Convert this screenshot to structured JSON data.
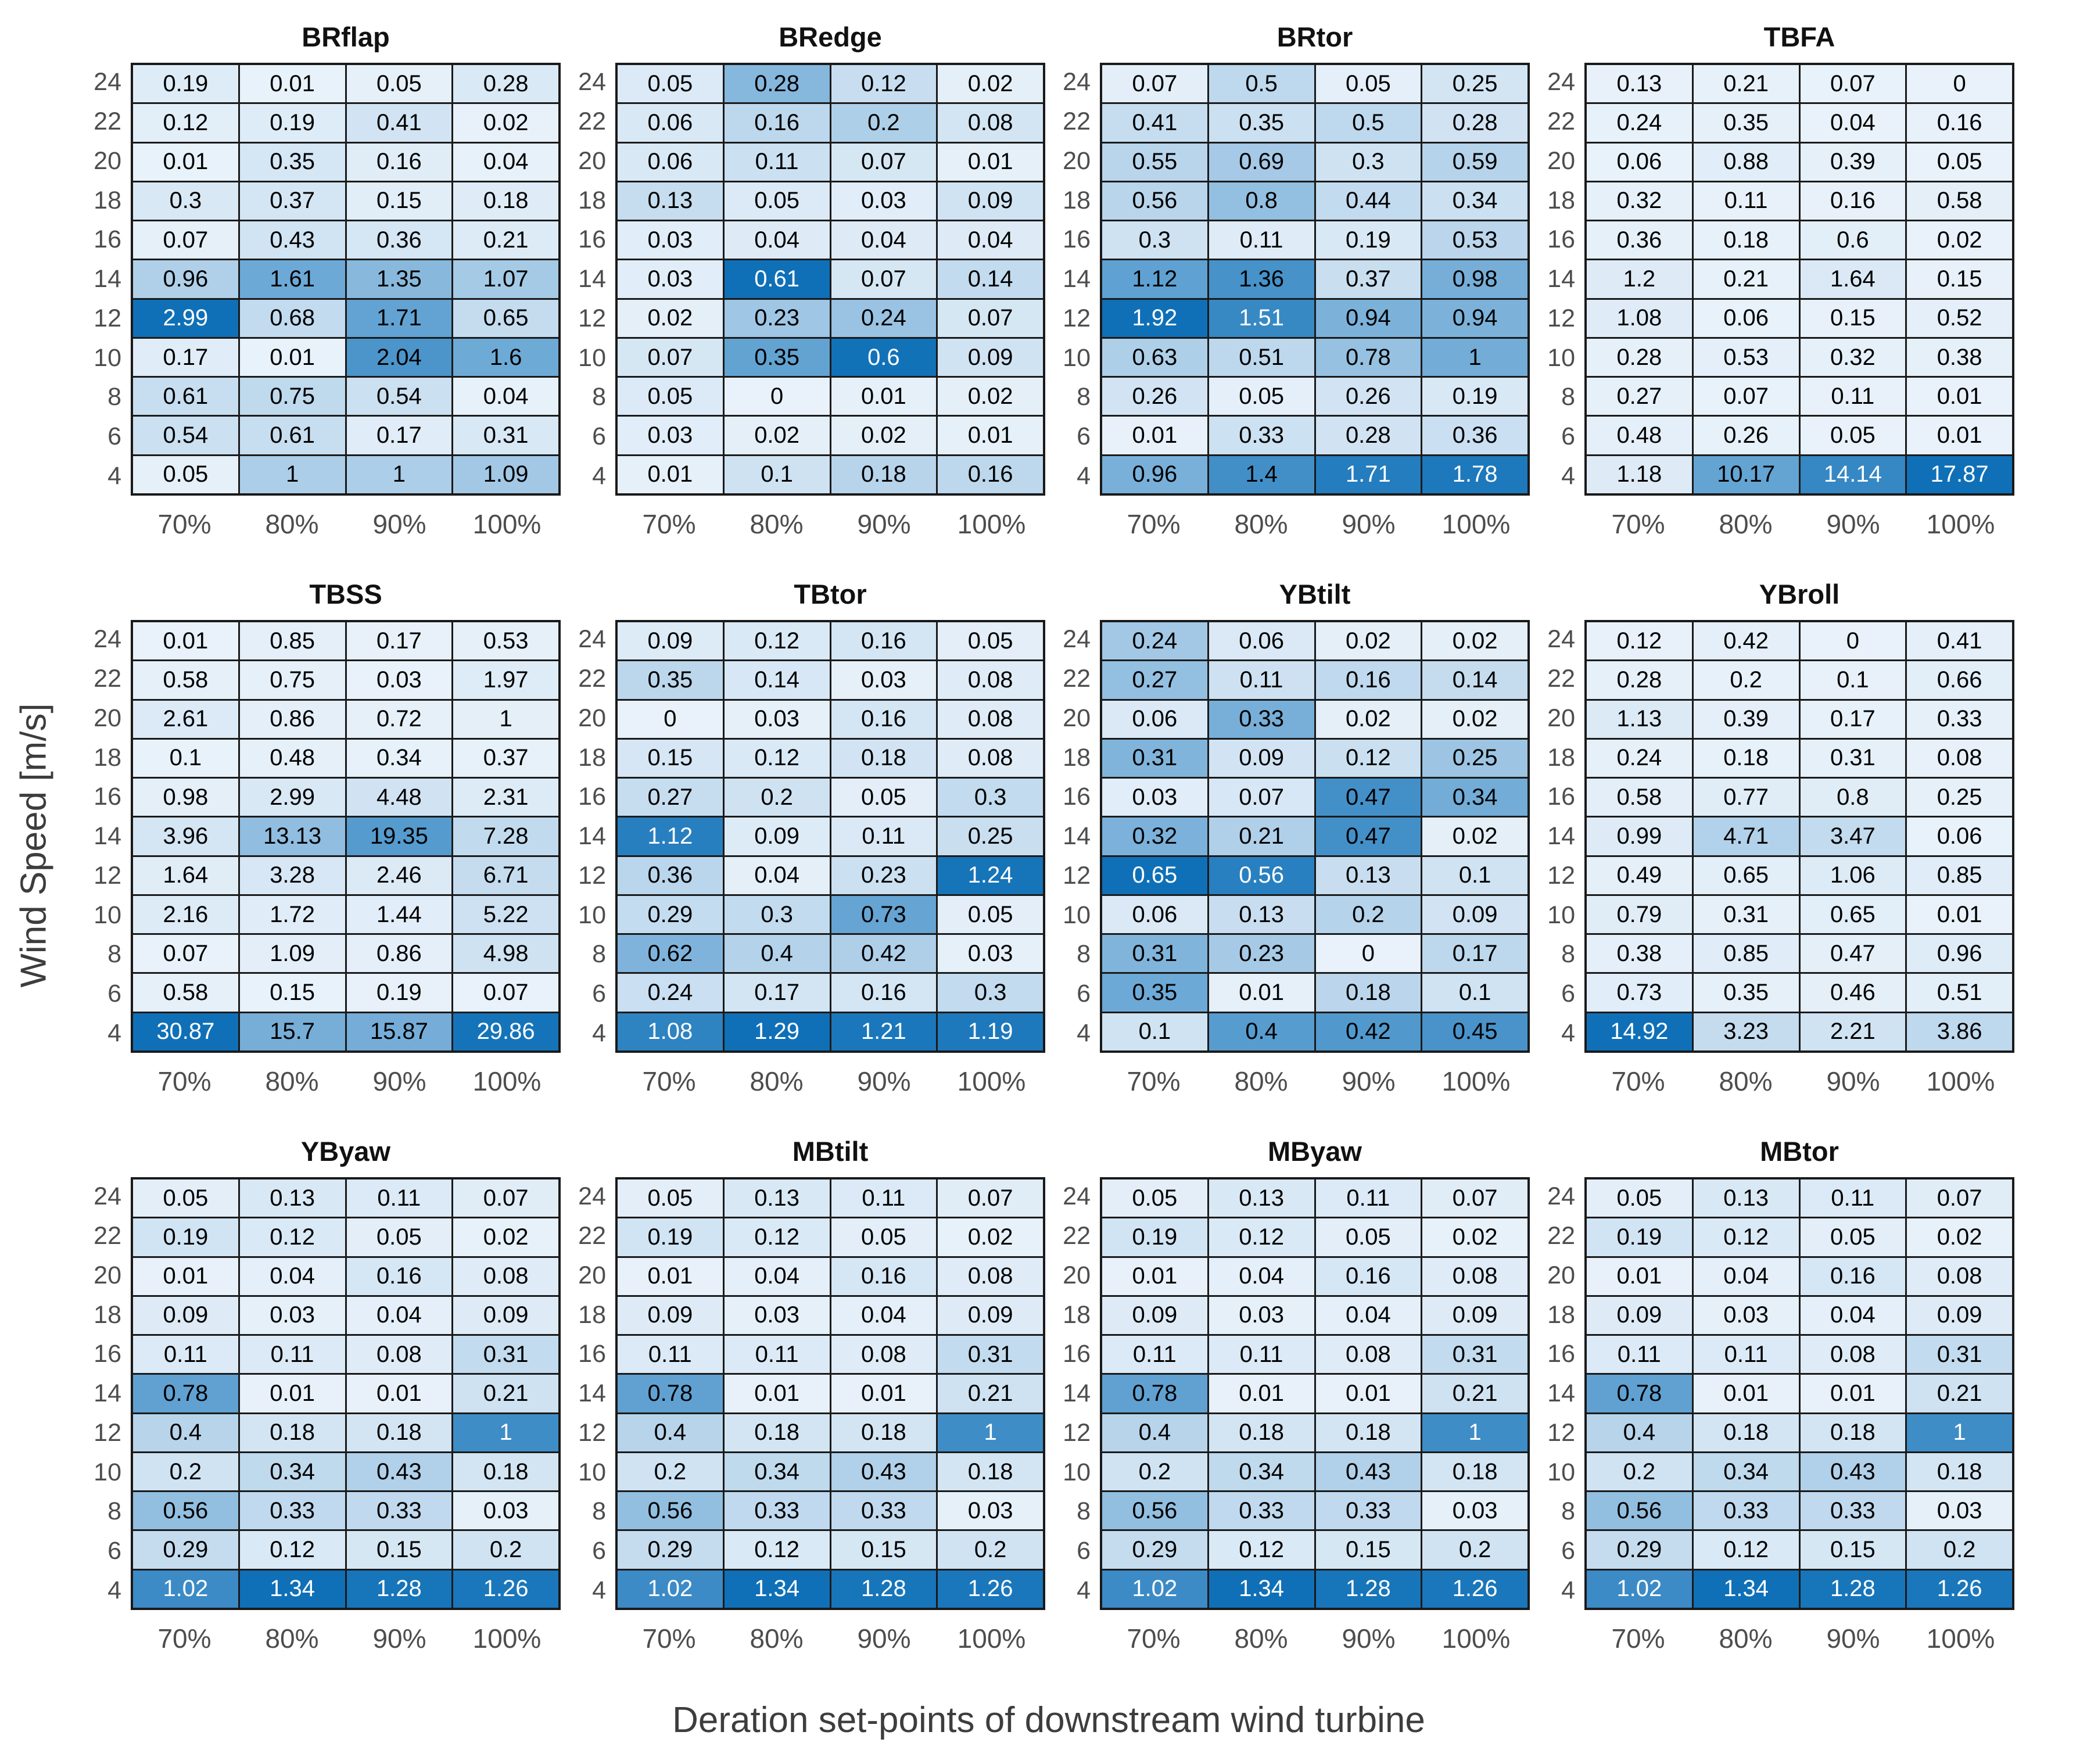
{
  "chart_data": {
    "type": "heatmap",
    "layout": {
      "rows": 3,
      "cols": 4
    },
    "xlabel": "Deration set-points of downstream wind turbine",
    "ylabel": "Wind Speed [m/s]",
    "x_tick_labels": [
      "70%",
      "80%",
      "90%",
      "100%"
    ],
    "y_tick_labels": [
      "24",
      "22",
      "20",
      "18",
      "16",
      "14",
      "12",
      "10",
      "8",
      "6",
      "4"
    ],
    "color_scale": {
      "normalization": "per_panel_max",
      "stops": [
        {
          "t": 0.0,
          "color": "#e9f2fa"
        },
        {
          "t": 0.3,
          "color": "#b7d4eb"
        },
        {
          "t": 0.6,
          "color": "#5a9ed0"
        },
        {
          "t": 1.0,
          "color": "#0f70b7"
        }
      ],
      "white_text_threshold": 0.74
    },
    "colors": {
      "background": "#ffffff",
      "grid_line": "#1a1a1a",
      "cell_text_dark": "#000000",
      "cell_text_light": "#ffffff",
      "tick_text": "#4d4d4d",
      "title_text": "#111111",
      "axis_label_text": "#3d3d3d"
    },
    "panels": [
      {
        "title": "BRflap",
        "values": [
          [
            0.19,
            0.01,
            0.05,
            0.28
          ],
          [
            0.12,
            0.19,
            0.41,
            0.02
          ],
          [
            0.01,
            0.35,
            0.16,
            0.04
          ],
          [
            0.3,
            0.37,
            0.15,
            0.18
          ],
          [
            0.07,
            0.43,
            0.36,
            0.21
          ],
          [
            0.96,
            1.61,
            1.35,
            1.07
          ],
          [
            2.99,
            0.68,
            1.71,
            0.65
          ],
          [
            0.17,
            0.01,
            2.04,
            1.6
          ],
          [
            0.61,
            0.75,
            0.54,
            0.04
          ],
          [
            0.54,
            0.61,
            0.17,
            0.31
          ],
          [
            0.05,
            1,
            1,
            1.09
          ]
        ]
      },
      {
        "title": "BRedge",
        "values": [
          [
            0.05,
            0.28,
            0.12,
            0.02
          ],
          [
            0.06,
            0.16,
            0.2,
            0.08
          ],
          [
            0.06,
            0.11,
            0.07,
            0.01
          ],
          [
            0.13,
            0.05,
            0.03,
            0.09
          ],
          [
            0.03,
            0.04,
            0.04,
            0.04
          ],
          [
            0.03,
            0.61,
            0.07,
            0.14
          ],
          [
            0.02,
            0.23,
            0.24,
            0.07
          ],
          [
            0.07,
            0.35,
            0.6,
            0.09
          ],
          [
            0.05,
            0,
            0.01,
            0.02
          ],
          [
            0.03,
            0.02,
            0.02,
            0.01
          ],
          [
            0.01,
            0.1,
            0.18,
            0.16
          ]
        ]
      },
      {
        "title": "BRtor",
        "values": [
          [
            0.07,
            0.5,
            0.05,
            0.25
          ],
          [
            0.41,
            0.35,
            0.5,
            0.28
          ],
          [
            0.55,
            0.69,
            0.3,
            0.59
          ],
          [
            0.56,
            0.8,
            0.44,
            0.34
          ],
          [
            0.3,
            0.11,
            0.19,
            0.53
          ],
          [
            1.12,
            1.36,
            0.37,
            0.98
          ],
          [
            1.92,
            1.51,
            0.94,
            0.94
          ],
          [
            0.63,
            0.51,
            0.78,
            1
          ],
          [
            0.26,
            0.05,
            0.26,
            0.19
          ],
          [
            0.01,
            0.33,
            0.28,
            0.36
          ],
          [
            0.96,
            1.4,
            1.71,
            1.78
          ]
        ]
      },
      {
        "title": "TBFA",
        "values": [
          [
            0.13,
            0.21,
            0.07,
            0
          ],
          [
            0.24,
            0.35,
            0.04,
            0.16
          ],
          [
            0.06,
            0.88,
            0.39,
            0.05
          ],
          [
            0.32,
            0.11,
            0.16,
            0.58
          ],
          [
            0.36,
            0.18,
            0.6,
            0.02
          ],
          [
            1.2,
            0.21,
            1.64,
            0.15
          ],
          [
            1.08,
            0.06,
            0.15,
            0.52
          ],
          [
            0.28,
            0.53,
            0.32,
            0.38
          ],
          [
            0.27,
            0.07,
            0.11,
            0.01
          ],
          [
            0.48,
            0.26,
            0.05,
            0.01
          ],
          [
            1.18,
            10.17,
            14.14,
            17.87
          ]
        ]
      },
      {
        "title": "TBSS",
        "values": [
          [
            0.01,
            0.85,
            0.17,
            0.53
          ],
          [
            0.58,
            0.75,
            0.03,
            1.97
          ],
          [
            2.61,
            0.86,
            0.72,
            1
          ],
          [
            0.1,
            0.48,
            0.34,
            0.37
          ],
          [
            0.98,
            2.99,
            4.48,
            2.31
          ],
          [
            3.96,
            13.13,
            19.35,
            7.28
          ],
          [
            1.64,
            3.28,
            2.46,
            6.71
          ],
          [
            2.16,
            1.72,
            1.44,
            5.22
          ],
          [
            0.07,
            1.09,
            0.86,
            4.98
          ],
          [
            0.58,
            0.15,
            0.19,
            0.07
          ],
          [
            30.87,
            15.7,
            15.87,
            29.86
          ]
        ]
      },
      {
        "title": "TBtor",
        "values": [
          [
            0.09,
            0.12,
            0.16,
            0.05
          ],
          [
            0.35,
            0.14,
            0.03,
            0.08
          ],
          [
            0,
            0.03,
            0.16,
            0.08
          ],
          [
            0.15,
            0.12,
            0.18,
            0.08
          ],
          [
            0.27,
            0.2,
            0.05,
            0.3
          ],
          [
            1.12,
            0.09,
            0.11,
            0.25
          ],
          [
            0.36,
            0.04,
            0.23,
            1.24
          ],
          [
            0.29,
            0.3,
            0.73,
            0.05
          ],
          [
            0.62,
            0.4,
            0.42,
            0.03
          ],
          [
            0.24,
            0.17,
            0.16,
            0.3
          ],
          [
            1.08,
            1.29,
            1.21,
            1.19
          ]
        ]
      },
      {
        "title": "YBtilt",
        "values": [
          [
            0.24,
            0.06,
            0.02,
            0.02
          ],
          [
            0.27,
            0.11,
            0.16,
            0.14
          ],
          [
            0.06,
            0.33,
            0.02,
            0.02
          ],
          [
            0.31,
            0.09,
            0.12,
            0.25
          ],
          [
            0.03,
            0.07,
            0.47,
            0.34
          ],
          [
            0.32,
            0.21,
            0.47,
            0.02
          ],
          [
            0.65,
            0.56,
            0.13,
            0.1
          ],
          [
            0.06,
            0.13,
            0.2,
            0.09
          ],
          [
            0.31,
            0.23,
            0,
            0.17
          ],
          [
            0.35,
            0.01,
            0.18,
            0.1
          ],
          [
            0.1,
            0.4,
            0.42,
            0.45
          ]
        ]
      },
      {
        "title": "YBroll",
        "values": [
          [
            0.12,
            0.42,
            0,
            0.41
          ],
          [
            0.28,
            0.2,
            0.1,
            0.66
          ],
          [
            1.13,
            0.39,
            0.17,
            0.33
          ],
          [
            0.24,
            0.18,
            0.31,
            0.08
          ],
          [
            0.58,
            0.77,
            0.8,
            0.25
          ],
          [
            0.99,
            4.71,
            3.47,
            0.06
          ],
          [
            0.49,
            0.65,
            1.06,
            0.85
          ],
          [
            0.79,
            0.31,
            0.65,
            0.01
          ],
          [
            0.38,
            0.85,
            0.47,
            0.96
          ],
          [
            0.73,
            0.35,
            0.46,
            0.51
          ],
          [
            14.92,
            3.23,
            2.21,
            3.86
          ]
        ]
      },
      {
        "title": "YByaw",
        "values": [
          [
            0.05,
            0.13,
            0.11,
            0.07
          ],
          [
            0.19,
            0.12,
            0.05,
            0.02
          ],
          [
            0.01,
            0.04,
            0.16,
            0.08
          ],
          [
            0.09,
            0.03,
            0.04,
            0.09
          ],
          [
            0.11,
            0.11,
            0.08,
            0.31
          ],
          [
            0.78,
            0.01,
            0.01,
            0.21
          ],
          [
            0.4,
            0.18,
            0.18,
            1
          ],
          [
            0.2,
            0.34,
            0.43,
            0.18
          ],
          [
            0.56,
            0.33,
            0.33,
            0.03
          ],
          [
            0.29,
            0.12,
            0.15,
            0.2
          ],
          [
            1.02,
            1.34,
            1.28,
            1.26
          ]
        ]
      },
      {
        "title": "MBtilt",
        "values": [
          [
            0.05,
            0.13,
            0.11,
            0.07
          ],
          [
            0.19,
            0.12,
            0.05,
            0.02
          ],
          [
            0.01,
            0.04,
            0.16,
            0.08
          ],
          [
            0.09,
            0.03,
            0.04,
            0.09
          ],
          [
            0.11,
            0.11,
            0.08,
            0.31
          ],
          [
            0.78,
            0.01,
            0.01,
            0.21
          ],
          [
            0.4,
            0.18,
            0.18,
            1
          ],
          [
            0.2,
            0.34,
            0.43,
            0.18
          ],
          [
            0.56,
            0.33,
            0.33,
            0.03
          ],
          [
            0.29,
            0.12,
            0.15,
            0.2
          ],
          [
            1.02,
            1.34,
            1.28,
            1.26
          ]
        ]
      },
      {
        "title": "MByaw",
        "values": [
          [
            0.05,
            0.13,
            0.11,
            0.07
          ],
          [
            0.19,
            0.12,
            0.05,
            0.02
          ],
          [
            0.01,
            0.04,
            0.16,
            0.08
          ],
          [
            0.09,
            0.03,
            0.04,
            0.09
          ],
          [
            0.11,
            0.11,
            0.08,
            0.31
          ],
          [
            0.78,
            0.01,
            0.01,
            0.21
          ],
          [
            0.4,
            0.18,
            0.18,
            1
          ],
          [
            0.2,
            0.34,
            0.43,
            0.18
          ],
          [
            0.56,
            0.33,
            0.33,
            0.03
          ],
          [
            0.29,
            0.12,
            0.15,
            0.2
          ],
          [
            1.02,
            1.34,
            1.28,
            1.26
          ]
        ]
      },
      {
        "title": "MBtor",
        "values": [
          [
            0.05,
            0.13,
            0.11,
            0.07
          ],
          [
            0.19,
            0.12,
            0.05,
            0.02
          ],
          [
            0.01,
            0.04,
            0.16,
            0.08
          ],
          [
            0.09,
            0.03,
            0.04,
            0.09
          ],
          [
            0.11,
            0.11,
            0.08,
            0.31
          ],
          [
            0.78,
            0.01,
            0.01,
            0.21
          ],
          [
            0.4,
            0.18,
            0.18,
            1
          ],
          [
            0.2,
            0.34,
            0.43,
            0.18
          ],
          [
            0.56,
            0.33,
            0.33,
            0.03
          ],
          [
            0.29,
            0.12,
            0.15,
            0.2
          ],
          [
            1.02,
            1.34,
            1.28,
            1.26
          ]
        ]
      }
    ]
  }
}
